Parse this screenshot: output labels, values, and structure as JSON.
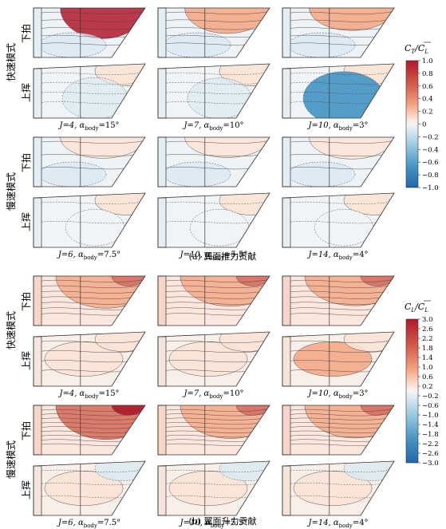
{
  "section_a": {
    "caption": "(a) 翼面推力贡献",
    "colorbar": {
      "label_main": "C",
      "label_sub1": "T",
      "label_sep": "/",
      "label_over": "C",
      "label_sub2": "L",
      "ticks": [
        "1.0",
        "0.8",
        "0.6",
        "0.4",
        "0.2",
        "0",
        "−0.2",
        "−0.4",
        "−0.6",
        "−0.8",
        "−1.0"
      ]
    },
    "groups": [
      {
        "mode_label": "快速模式",
        "panels": [
          {
            "label": "J=4, α",
            "sub": "body",
            "tail": "=15°"
          },
          {
            "label": "J=7, α",
            "sub": "body",
            "tail": "=10°"
          },
          {
            "label": "J=10, α",
            "sub": "body",
            "tail": "=3°"
          }
        ]
      },
      {
        "mode_label": "慢速模式",
        "panels": [
          {
            "label": "J=6, α",
            "sub": "body",
            "tail": "=7.5°"
          },
          {
            "label": "J=10, α",
            "sub": "body",
            "tail": "=5.5°"
          },
          {
            "label": "J=14, α",
            "sub": "body",
            "tail": "=4°"
          }
        ]
      }
    ]
  },
  "section_b": {
    "caption": "(b) 翼面升力贡献",
    "colorbar": {
      "label_main": "C",
      "label_sub1": "L",
      "label_sep": "/",
      "label_over": "C",
      "label_sub2": "L",
      "ticks": [
        "3.0",
        "2.6",
        "2.2",
        "1.8",
        "1.4",
        "1.0",
        "0.6",
        "0.2",
        "−0.2",
        "−0.6",
        "−1.0",
        "−1.4",
        "−1.8",
        "−2.2",
        "−2.6",
        "−3.0"
      ]
    },
    "groups": [
      {
        "mode_label": "快速模式",
        "panels": [
          {
            "label": "J=4, α",
            "sub": "body",
            "tail": "=15°"
          },
          {
            "label": "J=7, α",
            "sub": "body",
            "tail": "=10°"
          },
          {
            "label": "J=10, α",
            "sub": "body",
            "tail": "=3°"
          }
        ]
      },
      {
        "mode_label": "慢速模式",
        "panels": [
          {
            "label": "J=6, α",
            "sub": "body",
            "tail": "=7.5°"
          },
          {
            "label": "J=10, α",
            "sub": "body",
            "tail": "=5.5°"
          },
          {
            "label": "J=14, α",
            "sub": "body",
            "tail": "=4°"
          }
        ]
      }
    ]
  },
  "stroke_labels": {
    "down": "下拍",
    "up": "上挥"
  },
  "colors": {
    "deep_red": "#b2182b",
    "red": "#d6604d",
    "light_red": "#f4a582",
    "pale_red": "#fbe3d6",
    "neutral": "#f2f2f0",
    "pale_blue": "#dbe9f2",
    "light_blue": "#92c5de",
    "blue": "#4393c3",
    "deep_blue": "#2166ac"
  }
}
